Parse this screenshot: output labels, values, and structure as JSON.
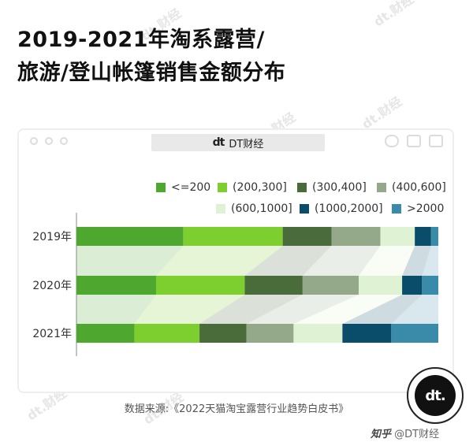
{
  "title": {
    "line1": "2019-2021年淘系露营/",
    "line2": "旅游/登山帐篷销售金额分布"
  },
  "window": {
    "logo": "dt",
    "url_label": "DT财经"
  },
  "watermark": "dt.财经",
  "colors": [
    "#4ea72e",
    "#7dcf2f",
    "#4a6b3a",
    "#93a98a",
    "#dff3d4",
    "#0a4d6b",
    "#3a8aa9"
  ],
  "chart_data": {
    "type": "bar",
    "orientation": "horizontal",
    "stacked": true,
    "normalized": true,
    "title": "",
    "xlabel": "",
    "ylabel": "",
    "categories": [
      "2019年",
      "2020年",
      "2021年"
    ],
    "series": [
      {
        "name": "<=200",
        "values": [
          29.5,
          22.0,
          16.0
        ]
      },
      {
        "name": "(200,300]",
        "values": [
          27.5,
          24.5,
          18.0
        ]
      },
      {
        "name": "(300,400]",
        "values": [
          13.5,
          16.0,
          13.0
        ]
      },
      {
        "name": "(400,600]",
        "values": [
          13.5,
          15.5,
          13.0
        ]
      },
      {
        "name": "(600,1000]",
        "values": [
          9.5,
          12.0,
          13.5
        ]
      },
      {
        "name": "(1000,2000]",
        "values": [
          4.5,
          5.5,
          13.5
        ]
      },
      {
        "name": ">2000",
        "values": [
          2.0,
          4.5,
          13.0
        ]
      }
    ],
    "legend_position": "top-right",
    "grid": false,
    "xlim": [
      0,
      100
    ]
  },
  "source": "数据来源:《2022天猫淘宝露营行业趋势白皮书》",
  "badge": "dt.",
  "footer": {
    "brand": "知乎",
    "handle": "@DT财经"
  }
}
